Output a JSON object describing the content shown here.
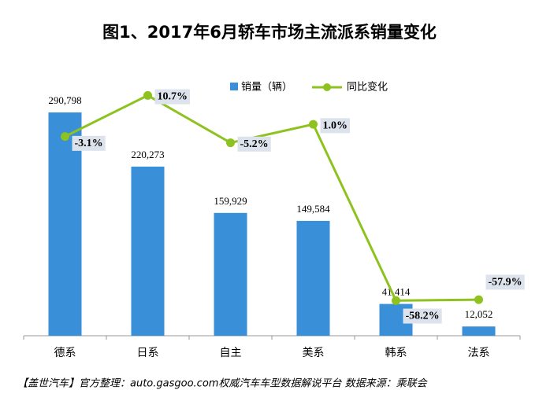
{
  "chart_data": {
    "type": "bar-line",
    "title": "图1、2017年6月轿车市场主流派系销量变化",
    "source": "【盖世汽车】官方整理：auto.gasgoo.com权威汽车车型数据解说平台  数据来源：乘联会",
    "categories": [
      "德系",
      "日系",
      "自主",
      "美系",
      "韩系",
      "法系"
    ],
    "series": [
      {
        "name": "销量（辆）",
        "type": "bar",
        "color": "#3a8fd9",
        "values": [
          290798,
          220273,
          159929,
          149584,
          41414,
          12052
        ],
        "value_labels": [
          "290,798",
          "220,273",
          "159,929",
          "149,584",
          "41,414",
          "12,052"
        ]
      },
      {
        "name": "同比变化",
        "type": "line",
        "axis": "y2",
        "color": "#8dc21f",
        "values": [
          -3.1,
          10.7,
          -5.2,
          1.0,
          -58.2,
          -57.9
        ],
        "value_labels": [
          "-3.1%",
          "10.7%",
          "-5.2%",
          "1.0%",
          "-58.2%",
          "-57.9%"
        ]
      }
    ],
    "ylim": [
      0,
      300000
    ],
    "y2lim": [
      -70,
      10
    ],
    "legend": "top"
  }
}
